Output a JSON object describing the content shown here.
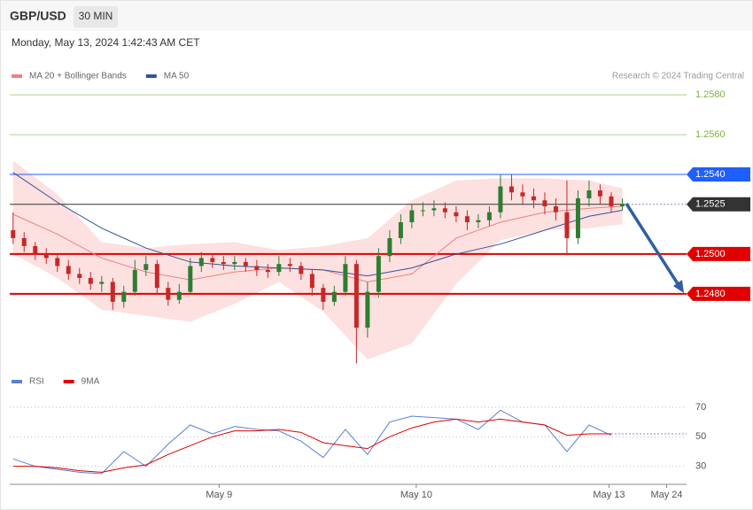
{
  "header": {
    "symbol": "GBP/USD",
    "timeframe": "30 MIN",
    "date": "Monday, May 13, 2024 1:42:43 AM CET"
  },
  "credit": "Research © 2024 Trading Central",
  "chart_data": [
    {
      "type": "candlestick",
      "x": [
        0,
        1,
        2,
        3,
        4,
        5,
        6,
        7,
        8,
        9,
        10,
        11,
        12,
        13,
        14,
        15,
        16,
        17,
        18,
        19,
        20,
        21,
        22,
        23,
        24,
        25,
        26,
        27,
        28,
        29,
        30,
        31,
        32,
        33,
        34,
        35,
        36,
        37,
        38,
        39,
        40,
        41,
        42,
        43,
        44,
        45,
        46,
        47,
        48,
        49,
        50,
        51,
        52,
        53,
        54,
        55
      ],
      "open": [
        1.2512,
        1.2508,
        1.2504,
        1.25,
        1.2498,
        1.2494,
        1.249,
        1.2488,
        1.2485,
        1.2486,
        1.2476,
        1.2481,
        1.2492,
        1.2495,
        1.2483,
        1.2477,
        1.2481,
        1.2494,
        1.2498,
        1.2496,
        1.2495,
        1.2496,
        1.2494,
        1.2492,
        1.2491,
        1.2495,
        1.2494,
        1.249,
        1.2483,
        1.2476,
        1.2481,
        1.2495,
        1.2463,
        1.2481,
        1.2499,
        1.2508,
        1.2516,
        1.2522,
        1.2522,
        1.2523,
        1.2521,
        1.2519,
        1.2516,
        1.2517,
        1.2521,
        1.2534,
        1.2531,
        1.2529,
        1.2527,
        1.2524,
        1.2521,
        1.2508,
        1.2528,
        1.2532,
        1.2529,
        1.2524
      ],
      "high": [
        1.2521,
        1.2511,
        1.2506,
        1.2503,
        1.25,
        1.2497,
        1.2493,
        1.2491,
        1.2489,
        1.2488,
        1.2484,
        1.2497,
        1.2499,
        1.2497,
        1.2486,
        1.2485,
        1.2498,
        1.2501,
        1.25,
        1.2499,
        1.2499,
        1.2498,
        1.2497,
        1.2495,
        1.2499,
        1.2498,
        1.2496,
        1.2492,
        1.2485,
        1.2484,
        1.2499,
        1.2497,
        1.2486,
        1.2503,
        1.2512,
        1.252,
        1.2525,
        1.2526,
        1.2527,
        1.2526,
        1.2524,
        1.2522,
        1.252,
        1.2524,
        1.254,
        1.254,
        1.2535,
        1.2533,
        1.2531,
        1.2528,
        1.2537,
        1.2532,
        1.2537,
        1.2535,
        1.2531,
        1.2528
      ],
      "low": [
        1.2505,
        1.2501,
        1.2497,
        1.2495,
        1.2491,
        1.2487,
        1.2485,
        1.2482,
        1.2481,
        1.2472,
        1.2473,
        1.2479,
        1.2489,
        1.248,
        1.2474,
        1.2475,
        1.248,
        1.2491,
        1.2493,
        1.2492,
        1.2492,
        1.2491,
        1.2489,
        1.2488,
        1.2489,
        1.2491,
        1.2487,
        1.2479,
        1.2472,
        1.2474,
        1.2479,
        1.2445,
        1.2458,
        1.2478,
        1.2496,
        1.2505,
        1.2513,
        1.2519,
        1.2519,
        1.2518,
        1.2516,
        1.2512,
        1.2513,
        1.2514,
        1.2518,
        1.2527,
        1.2525,
        1.2523,
        1.252,
        1.2517,
        1.25,
        1.2505,
        1.2524,
        1.2525,
        1.2521,
        1.2522
      ],
      "close": [
        1.2508,
        1.2504,
        1.25,
        1.2498,
        1.2494,
        1.249,
        1.2488,
        1.2485,
        1.2486,
        1.2476,
        1.2481,
        1.2492,
        1.2495,
        1.2483,
        1.2477,
        1.2481,
        1.2494,
        1.2498,
        1.2496,
        1.2495,
        1.2496,
        1.2494,
        1.2492,
        1.2491,
        1.2495,
        1.2494,
        1.249,
        1.2483,
        1.2476,
        1.2481,
        1.2495,
        1.2463,
        1.2481,
        1.2499,
        1.2508,
        1.2516,
        1.2522,
        1.2522,
        1.2523,
        1.2521,
        1.2519,
        1.2516,
        1.2517,
        1.2521,
        1.2534,
        1.2531,
        1.2529,
        1.2527,
        1.2524,
        1.2521,
        1.2508,
        1.2528,
        1.2532,
        1.2529,
        1.2524,
        1.2525
      ],
      "up_color": "#2e7d32",
      "down_color": "#c62828",
      "xlim": [
        -0.3,
        60.8
      ],
      "ylim": [
        1.2443,
        1.2601
      ],
      "overlays": [
        {
          "name": "MA 20 + Bollinger Bands",
          "color": "#f08080",
          "band_color": "#fde0e0",
          "x": [
            0,
            4,
            8,
            12,
            16,
            20,
            24,
            28,
            32,
            36,
            40,
            44,
            48,
            52,
            55
          ],
          "values": [
            1.252,
            1.251,
            1.2498,
            1.2491,
            1.2487,
            1.2491,
            1.2493,
            1.2492,
            1.2486,
            1.249,
            1.2508,
            1.2516,
            1.2521,
            1.2523,
            1.2524
          ],
          "upper": [
            1.2547,
            1.253,
            1.2506,
            1.2503,
            1.2505,
            1.2506,
            1.2502,
            1.2504,
            1.2508,
            1.2527,
            1.2537,
            1.2538,
            1.2538,
            1.2537,
            1.2533
          ],
          "lower": [
            1.25,
            1.2488,
            1.2472,
            1.2469,
            1.2466,
            1.2475,
            1.2486,
            1.2471,
            1.2447,
            1.2455,
            1.2485,
            1.2507,
            1.2512,
            1.2513,
            1.2515
          ]
        },
        {
          "name": "MA 50",
          "color": "#2f5597",
          "x": [
            0,
            4,
            8,
            12,
            16,
            20,
            24,
            28,
            32,
            36,
            40,
            44,
            48,
            52,
            55
          ],
          "values": [
            1.2541,
            1.2526,
            1.2513,
            1.2503,
            1.2496,
            1.2494,
            1.2493,
            1.2492,
            1.2489,
            1.2493,
            1.25,
            1.2505,
            1.2512,
            1.2519,
            1.2522
          ]
        }
      ],
      "levels": [
        {
          "value": 1.258,
          "label": "1.2580",
          "color": "#7cb342",
          "tag": false
        },
        {
          "value": 1.256,
          "label": "1.2560",
          "color": "#7cb342",
          "tag": false
        },
        {
          "value": 1.254,
          "label": "1.2540",
          "color": "#1f5fff",
          "tag": true
        },
        {
          "value": 1.2525,
          "label": "1.2525",
          "color": "#333333",
          "tag": true,
          "dotted": true
        },
        {
          "value": 1.25,
          "label": "1.2500",
          "color": "#e00000",
          "tag": true
        },
        {
          "value": 1.248,
          "label": "1.2480",
          "color": "#e00000",
          "tag": true
        }
      ]
    },
    {
      "type": "line",
      "x": [
        0,
        2,
        4,
        6,
        8,
        10,
        12,
        14,
        16,
        18,
        20,
        22,
        24,
        26,
        28,
        30,
        32,
        34,
        36,
        38,
        40,
        42,
        44,
        46,
        48,
        50,
        52,
        54
      ],
      "xlim": [
        -0.3,
        60.8
      ],
      "ylim": [
        19,
        82
      ],
      "yticks": [
        70,
        50,
        30
      ],
      "xticks": [
        {
          "value": 18.6,
          "label": "May 9"
        },
        {
          "value": 36.4,
          "label": "May 10"
        },
        {
          "value": 53.8,
          "label": "May 13"
        },
        {
          "value": 59,
          "label": "May 24"
        }
      ],
      "series": [
        {
          "name": "RSI",
          "color": "#5b7fd6",
          "values": [
            35,
            30,
            28,
            26,
            25,
            40,
            30,
            45,
            58,
            52,
            57,
            55,
            54,
            47,
            36,
            55,
            38,
            60,
            64,
            63,
            62,
            55,
            68,
            60,
            58,
            40,
            58,
            51
          ]
        },
        {
          "name": "9MA",
          "color": "#e00000",
          "values": [
            30,
            30,
            29,
            27,
            26,
            29,
            31,
            38,
            44,
            50,
            54,
            54,
            55,
            53,
            46,
            44,
            42,
            50,
            56,
            60,
            62,
            60,
            62,
            60,
            58,
            51,
            52,
            52
          ]
        }
      ]
    }
  ]
}
